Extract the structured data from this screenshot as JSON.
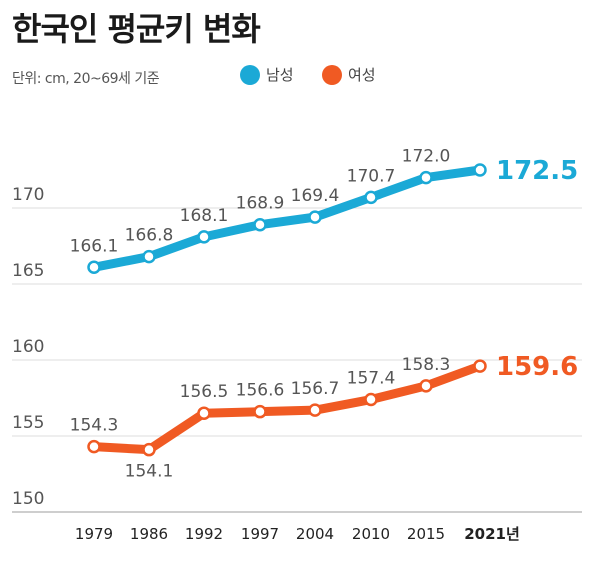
{
  "title": "한국인 평균키 변화",
  "unit_note": "단위: cm, 20~69세 기준",
  "legend": [
    {
      "label": "남성",
      "color": "#1ba9d6"
    },
    {
      "label": "여성",
      "color": "#f05a23"
    }
  ],
  "chart_data": {
    "type": "line",
    "title": "한국인 평균키 변화",
    "x": [
      "1979",
      "1986",
      "1992",
      "1997",
      "2004",
      "2010",
      "2015",
      "2021년"
    ],
    "yticks": [
      150,
      155,
      160,
      165,
      170
    ],
    "ylim": [
      150,
      175
    ],
    "grid": true,
    "legend_position": "top",
    "series": [
      {
        "name": "남성",
        "color": "#1ba9d6",
        "values": [
          166.1,
          166.8,
          168.1,
          168.9,
          169.4,
          170.7,
          172.0,
          172.5
        ],
        "labels": [
          "166.1",
          "166.8",
          "168.1",
          "168.9",
          "169.4",
          "170.7",
          "172.0",
          "172.5"
        ]
      },
      {
        "name": "여성",
        "color": "#f05a23",
        "values": [
          154.3,
          154.1,
          156.5,
          156.6,
          156.7,
          157.4,
          158.3,
          159.6
        ],
        "labels": [
          "154.3",
          "154.1",
          "156.5",
          "156.6",
          "156.7",
          "157.4",
          "158.3",
          "159.6"
        ]
      }
    ]
  }
}
